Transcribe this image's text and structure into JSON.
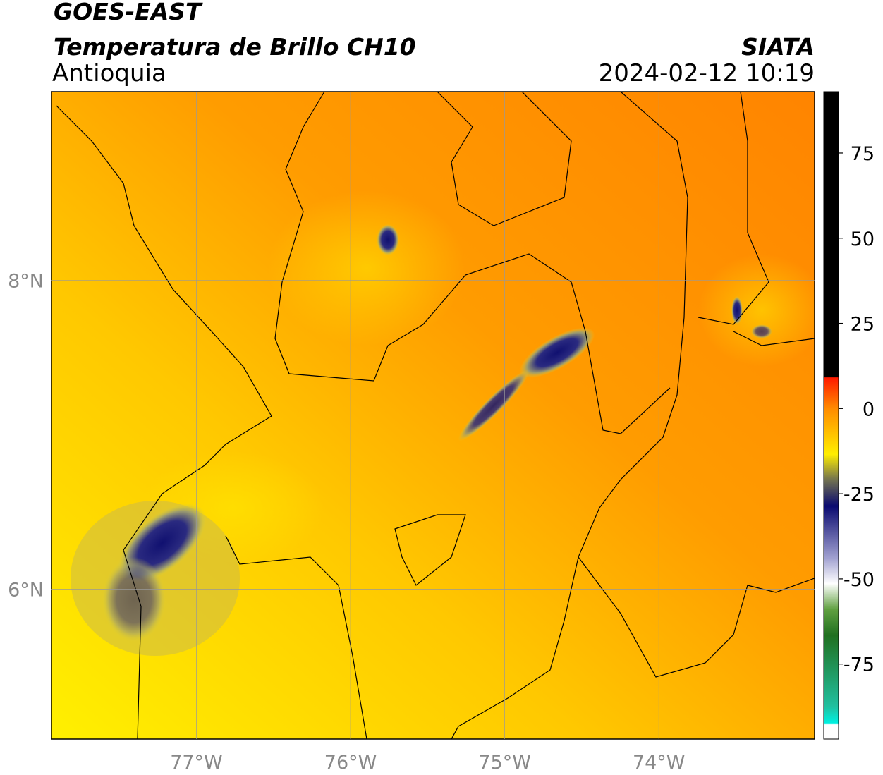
{
  "chart_data": {
    "type": "map",
    "title": "GOES-EAST",
    "subtitle": "Temperatura de Brillo CH10",
    "region": "Antioquia",
    "source": "SIATA",
    "datetime": "2024-02-12 10:19",
    "xlim": [
      -77.94,
      -72.99
    ],
    "ylim": [
      5.03,
      9.22
    ],
    "xticks": [
      {
        "value": -77,
        "label": "77°W"
      },
      {
        "value": -76,
        "label": "76°W"
      },
      {
        "value": -75,
        "label": "75°W"
      },
      {
        "value": -74,
        "label": "74°W"
      }
    ],
    "yticks": [
      {
        "value": 8,
        "label": "8°N"
      },
      {
        "value": 6,
        "label": "6°N"
      }
    ],
    "grid": true,
    "clim": [
      -97,
      93
    ],
    "cticks": [
      75,
      50,
      25,
      0,
      -25,
      -50,
      -75
    ]
  }
}
